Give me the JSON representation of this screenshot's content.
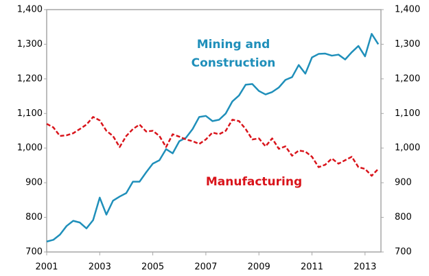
{
  "chart_data": {
    "type": "line",
    "x": [
      2001,
      2001.25,
      2001.5,
      2001.75,
      2002,
      2002.25,
      2002.5,
      2002.75,
      2003,
      2003.25,
      2003.5,
      2003.75,
      2004,
      2004.25,
      2004.5,
      2004.75,
      2005,
      2005.25,
      2005.5,
      2005.75,
      2006,
      2006.25,
      2006.5,
      2006.75,
      2007,
      2007.25,
      2007.5,
      2007.75,
      2008,
      2008.25,
      2008.5,
      2008.75,
      2009,
      2009.25,
      2009.5,
      2009.75,
      2010,
      2010.25,
      2010.5,
      2010.75,
      2011,
      2011.25,
      2011.5,
      2011.75,
      2012,
      2012.25,
      2012.5,
      2012.75,
      2013,
      2013.25,
      2013.5
    ],
    "series": [
      {
        "name": "Mining and Construction",
        "color": "#1f8fba",
        "dash": false,
        "values": [
          730,
          735,
          750,
          775,
          790,
          785,
          768,
          792,
          857,
          808,
          848,
          860,
          870,
          903,
          903,
          930,
          955,
          965,
          997,
          985,
          1020,
          1030,
          1055,
          1090,
          1093,
          1078,
          1082,
          1100,
          1135,
          1152,
          1183,
          1185,
          1165,
          1155,
          1162,
          1175,
          1197,
          1205,
          1240,
          1215,
          1262,
          1272,
          1273,
          1267,
          1270,
          1256,
          1277,
          1295,
          1265,
          1330,
          1300
        ]
      },
      {
        "name": "Manufacturing",
        "color": "#d9141b",
        "dash": true,
        "values": [
          1070,
          1060,
          1035,
          1037,
          1043,
          1055,
          1068,
          1090,
          1080,
          1050,
          1035,
          1003,
          1035,
          1055,
          1068,
          1048,
          1050,
          1035,
          1003,
          1040,
          1033,
          1025,
          1020,
          1012,
          1025,
          1045,
          1040,
          1050,
          1082,
          1078,
          1055,
          1025,
          1028,
          1005,
          1028,
          998,
          1005,
          978,
          993,
          990,
          975,
          945,
          952,
          970,
          955,
          965,
          975,
          945,
          940,
          920,
          940
        ]
      }
    ],
    "xlim": [
      2001,
      2013.6
    ],
    "xticks": [
      2001,
      2003,
      2005,
      2007,
      2009,
      2011,
      2013
    ],
    "ylim": [
      700,
      1400
    ],
    "yticks": [
      {
        "value": 700,
        "label": "700"
      },
      {
        "value": 800,
        "label": "800"
      },
      {
        "value": 900,
        "label": "900"
      },
      {
        "value": 1000,
        "label": "1,000"
      },
      {
        "value": 1100,
        "label": "1,100"
      },
      {
        "value": 1200,
        "label": "1,200"
      },
      {
        "value": 1300,
        "label": "1,300"
      },
      {
        "value": 1400,
        "label": "1,400"
      }
    ],
    "y2lim": [
      700,
      1400
    ],
    "y2ticks": [
      {
        "value": 700,
        "label": "700"
      },
      {
        "value": 800,
        "label": "800"
      },
      {
        "value": 900,
        "label": "900"
      },
      {
        "value": 1000,
        "label": "1,000"
      },
      {
        "value": 1100,
        "label": "1,100"
      },
      {
        "value": 1200,
        "label": "1,200"
      },
      {
        "value": 1300,
        "label": "1,300"
      },
      {
        "value": 1400,
        "label": "1,400"
      }
    ],
    "grid": false
  }
}
